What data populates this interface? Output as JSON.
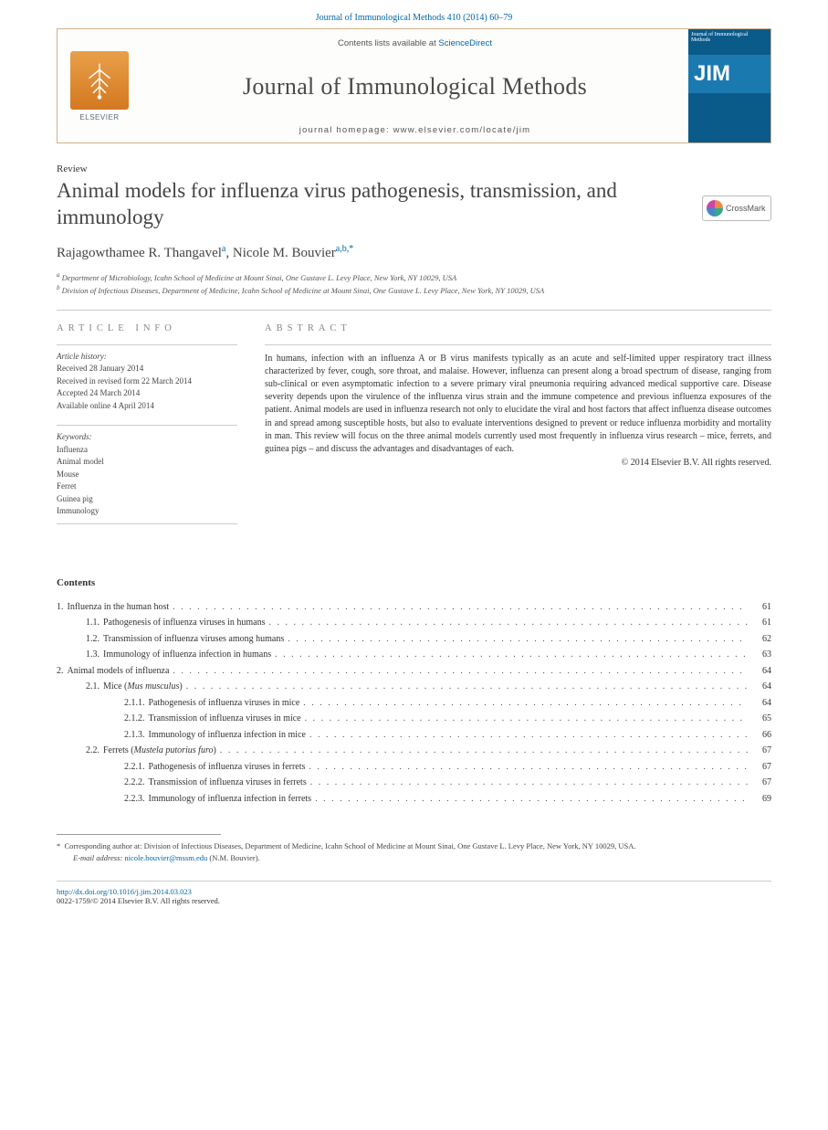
{
  "citation": "Journal of Immunological Methods 410 (2014) 60–79",
  "header": {
    "contents_prefix": "Contents lists available at ",
    "sd_label": "ScienceDirect",
    "journal_name": "Journal of Immunological Methods",
    "homepage_prefix": "journal homepage: ",
    "homepage_url": "www.elsevier.com/locate/jim",
    "elsevier_label": "ELSEVIER",
    "cover_abbrev": "JIM",
    "cover_small": "Journal of Immunological Methods"
  },
  "article": {
    "type_label": "Review",
    "title": "Animal models for influenza virus pathogenesis, transmission, and immunology",
    "crossmark_label": "CrossMark"
  },
  "authors": {
    "a1_name": "Rajagowthamee R. Thangavel",
    "a1_sup": "a",
    "a2_name": "Nicole M. Bouvier",
    "a2_sup": "a,b,",
    "corr_mark": "*"
  },
  "affiliations": {
    "a": "Department of Microbiology, Icahn School of Medicine at Mount Sinai, One Gustave L. Levy Place, New York, NY 10029, USA",
    "b": "Division of Infectious Diseases, Department of Medicine, Icahn School of Medicine at Mount Sinai, One Gustave L. Levy Place, New York, NY 10029, USA"
  },
  "info": {
    "heading": "ARTICLE INFO",
    "history_label": "Article history:",
    "received": "Received 28 January 2014",
    "revised": "Received in revised form 22 March 2014",
    "accepted": "Accepted 24 March 2014",
    "online": "Available online 4 April 2014",
    "keywords_label": "Keywords:",
    "keywords": [
      "Influenza",
      "Animal model",
      "Mouse",
      "Ferret",
      "Guinea pig",
      "Immunology"
    ]
  },
  "abstract": {
    "heading": "ABSTRACT",
    "text": "In humans, infection with an influenza A or B virus manifests typically as an acute and self-limited upper respiratory tract illness characterized by fever, cough, sore throat, and malaise. However, influenza can present along a broad spectrum of disease, ranging from sub-clinical or even asymptomatic infection to a severe primary viral pneumonia requiring advanced medical supportive care. Disease severity depends upon the virulence of the influenza virus strain and the immune competence and previous influenza exposures of the patient. Animal models are used in influenza research not only to elucidate the viral and host factors that affect influenza disease outcomes in and spread among susceptible hosts, but also to evaluate interventions designed to prevent or reduce influenza morbidity and mortality in man. This review will focus on the three animal models currently used most frequently in influenza virus research – mice, ferrets, and guinea pigs – and discuss the advantages and disadvantages of each.",
    "copyright": "© 2014 Elsevier B.V. All rights reserved."
  },
  "contents": {
    "heading": "Contents",
    "items": [
      {
        "n": "1.",
        "t": "Influenza in the human host",
        "p": "61",
        "lvl": 0
      },
      {
        "n": "1.1.",
        "t": "Pathogenesis of influenza viruses in humans",
        "p": "61",
        "lvl": 1
      },
      {
        "n": "1.2.",
        "t": "Transmission of influenza viruses among humans",
        "p": "62",
        "lvl": 1
      },
      {
        "n": "1.3.",
        "t": "Immunology of influenza infection in humans",
        "p": "63",
        "lvl": 1
      },
      {
        "n": "2.",
        "t": "Animal models of influenza",
        "p": "64",
        "lvl": 0
      },
      {
        "n": "2.1.",
        "t": "Mice (Mus musculus)",
        "p": "64",
        "lvl": 1,
        "italic": true
      },
      {
        "n": "2.1.1.",
        "t": "Pathogenesis of influenza viruses in mice",
        "p": "64",
        "lvl": 2
      },
      {
        "n": "2.1.2.",
        "t": "Transmission of influenza viruses in mice",
        "p": "65",
        "lvl": 2
      },
      {
        "n": "2.1.3.",
        "t": "Immunology of influenza infection in mice",
        "p": "66",
        "lvl": 2
      },
      {
        "n": "2.2.",
        "t": "Ferrets (Mustela putorius furo)",
        "p": "67",
        "lvl": 1,
        "italic": true
      },
      {
        "n": "2.2.1.",
        "t": "Pathogenesis of influenza viruses in ferrets",
        "p": "67",
        "lvl": 2
      },
      {
        "n": "2.2.2.",
        "t": "Transmission of influenza viruses in ferrets",
        "p": "67",
        "lvl": 2
      },
      {
        "n": "2.2.3.",
        "t": "Immunology of influenza infection in ferrets",
        "p": "69",
        "lvl": 2
      }
    ]
  },
  "footnotes": {
    "corr_mark": "*",
    "corr_text": "Corresponding author at: Division of Infectious Diseases, Department of Medicine, Icahn School of Medicine at Mount Sinai, One Gustave L. Levy Place, New York, NY 10029, USA.",
    "email_label": "E-mail address:",
    "email": "nicole.bouvier@mssm.edu",
    "email_attr": "(N.M. Bouvier)."
  },
  "bottom": {
    "doi": "http://dx.doi.org/10.1016/j.jim.2014.03.023",
    "issn_line": "0022-1759/© 2014 Elsevier B.V. All rights reserved."
  },
  "style": {
    "link_color": "#0066aa",
    "header_border": "#d4b088",
    "cover_bg": "#0a5a8a"
  }
}
